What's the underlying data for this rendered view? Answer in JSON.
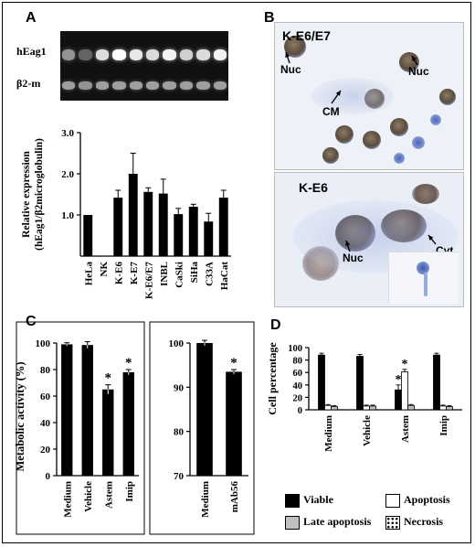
{
  "panels": {
    "A": {
      "label": "A",
      "gel": {
        "row_labels": [
          "hEag1",
          "β2-m"
        ],
        "hEag1_intensity": [
          0.55,
          0.35,
          0.85,
          1.0,
          0.9,
          0.85,
          0.95,
          0.8,
          0.85,
          0.95
        ],
        "b2m_intensity": [
          0.6,
          0.55,
          0.6,
          0.6,
          0.6,
          0.6,
          0.6,
          0.6,
          0.6,
          0.6
        ]
      }
    },
    "B": {
      "label": "B",
      "top": {
        "title": "K-E6/E7",
        "labels": [
          "Nuc",
          "Nuc",
          "CM"
        ]
      },
      "bottom": {
        "title": "K-E6",
        "labels": [
          "Nuc",
          "Cyt"
        ]
      }
    },
    "C": {
      "label": "C"
    },
    "D": {
      "label": "D",
      "legend": [
        {
          "name": "Viable",
          "color": "#000000"
        },
        {
          "name": "Apoptosis",
          "color": "#ffffff"
        },
        {
          "name": "Late apoptosis",
          "color": "#bfbfbf"
        },
        {
          "name": "Necrosis",
          "color": "#ffffff",
          "pattern": "cross"
        }
      ]
    }
  },
  "chart_data": [
    {
      "id": "A",
      "type": "bar",
      "ylabel": "Relative expression (hEag1/β2microglobulin)",
      "ylabel_lines": [
        "Relative expression",
        "(hEag1/β2microglobulin)"
      ],
      "categories": [
        "HeLa",
        "NK",
        "K-E6",
        "K-E7",
        "K-E6/E7",
        "INBL",
        "CaSki",
        "SiHa",
        "C33A",
        "HaCat"
      ],
      "values": [
        1.0,
        0.0,
        1.42,
        2.0,
        1.56,
        1.52,
        1.02,
        1.2,
        0.84,
        1.42
      ],
      "errors": [
        0,
        0,
        0.18,
        0.5,
        0.1,
        0.35,
        0.14,
        0.06,
        0.2,
        0.18
      ],
      "ylim": [
        0,
        3.0
      ],
      "yticks": [
        "1.0",
        "2.0",
        "3.0"
      ]
    },
    {
      "id": "C1",
      "type": "bar",
      "ylabel": "Metabolic activity (%)",
      "categories": [
        "Medium",
        "Vehicle",
        "Astem",
        "Imip"
      ],
      "values": [
        99,
        98.5,
        65,
        78
      ],
      "errors": [
        1.2,
        2.5,
        3.5,
        2
      ],
      "significance": [
        "",
        "",
        "*",
        "*"
      ],
      "ylim": [
        0,
        100
      ],
      "yticks": [
        "0",
        "20",
        "40",
        "60",
        "80",
        "100"
      ]
    },
    {
      "id": "C2",
      "type": "bar",
      "categories": [
        "Medium",
        "mAb56"
      ],
      "values": [
        100,
        93.5
      ],
      "errors": [
        0.6,
        0.5
      ],
      "significance": [
        "",
        "*"
      ],
      "ylim": [
        70,
        100
      ],
      "yticks": [
        "70",
        "80",
        "90",
        "100"
      ]
    },
    {
      "id": "D",
      "type": "bar",
      "ylabel": "Cell percentage",
      "categories": [
        "Medium",
        "Vehicle",
        "Astem",
        "Imip"
      ],
      "series": [
        {
          "name": "Viable",
          "values": [
            88,
            86,
            32,
            88
          ],
          "errors": [
            3,
            3,
            8,
            3
          ],
          "significance": [
            "",
            "",
            "*",
            ""
          ]
        },
        {
          "name": "Apoptosis",
          "values": [
            7,
            6,
            61,
            6
          ],
          "errors": [
            1.5,
            1.5,
            4,
            1.5
          ],
          "significance": [
            "",
            "",
            "*",
            ""
          ]
        },
        {
          "name": "Late apoptosis",
          "values": [
            5,
            6,
            7,
            5
          ],
          "errors": [
            1.5,
            1.5,
            1.5,
            1.5
          ],
          "significance": [
            "",
            "",
            "",
            ""
          ]
        }
      ],
      "ylim": [
        0,
        100
      ],
      "yticks": [
        "0",
        "20",
        "40",
        "60",
        "80",
        "100"
      ]
    }
  ]
}
